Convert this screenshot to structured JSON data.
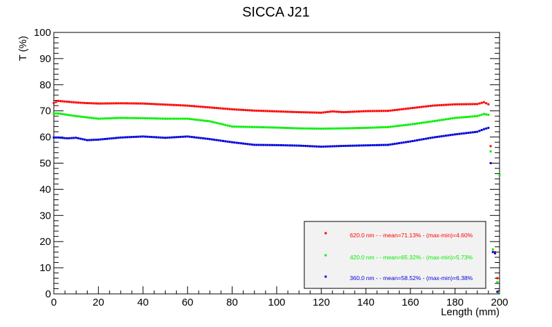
{
  "chart_data": {
    "type": "scatter",
    "title": "SICCA J21",
    "xlabel": "Length (mm)",
    "ylabel": "T (%)",
    "xlim": [
      0,
      200
    ],
    "ylim": [
      0,
      100
    ],
    "x_ticks": [
      0,
      20,
      40,
      60,
      80,
      100,
      120,
      140,
      160,
      180,
      200
    ],
    "y_ticks": [
      0,
      10,
      20,
      30,
      40,
      50,
      60,
      70,
      80,
      90,
      100
    ],
    "grid": false,
    "legend_position": "bottom-right",
    "series": [
      {
        "name": "620.0 nm -  - mean=71.13% - (max-min)=4.60%",
        "color": "#ff0000",
        "profile_x": [
          0,
          2,
          6,
          10,
          14,
          20,
          30,
          40,
          50,
          60,
          70,
          80,
          90,
          100,
          110,
          120,
          125,
          130,
          140,
          150,
          160,
          170,
          180,
          190,
          193,
          195
        ],
        "profile_y": [
          73.0,
          73.8,
          73.5,
          73.2,
          73.0,
          72.8,
          72.9,
          72.8,
          72.4,
          72.0,
          71.3,
          70.6,
          70.1,
          69.8,
          69.5,
          69.3,
          69.8,
          69.5,
          69.9,
          70.0,
          71.0,
          72.0,
          72.5,
          72.6,
          73.3,
          72.5
        ],
        "tail": [
          {
            "x": 196,
            "y": 56.5
          },
          {
            "x": 198,
            "y": 16.0
          },
          {
            "x": 199,
            "y": 6.0
          },
          {
            "x": 199.5,
            "y": 1.0
          }
        ]
      },
      {
        "name": "420.0 nm -  - mean=65.32% - (max-min)=5.73%",
        "color": "#00ee00",
        "profile_x": [
          0,
          2,
          6,
          10,
          15,
          20,
          30,
          40,
          50,
          60,
          70,
          80,
          90,
          100,
          110,
          120,
          130,
          140,
          150,
          160,
          170,
          180,
          190,
          193,
          195
        ],
        "profile_y": [
          69.0,
          69.0,
          68.5,
          68.0,
          67.5,
          67.0,
          67.3,
          67.2,
          67.0,
          67.0,
          66.0,
          64.0,
          63.8,
          63.6,
          63.3,
          63.2,
          63.3,
          63.5,
          63.8,
          64.8,
          66.0,
          67.3,
          68.0,
          68.8,
          68.5
        ],
        "tail": [
          {
            "x": 196,
            "y": 54.5
          },
          {
            "x": 197,
            "y": 17.0
          },
          {
            "x": 199,
            "y": 4.5
          },
          {
            "x": 199.6,
            "y": 0.5
          },
          {
            "x": 200,
            "y": 45.5
          }
        ]
      },
      {
        "name": "360.0 nm -  - mean=58.52% - (max-min)=6.38%",
        "color": "#0000dd",
        "profile_x": [
          0,
          2,
          6,
          10,
          15,
          20,
          30,
          40,
          50,
          60,
          70,
          80,
          90,
          100,
          110,
          120,
          130,
          140,
          150,
          160,
          170,
          180,
          190,
          193,
          195
        ],
        "profile_y": [
          59.8,
          59.8,
          59.5,
          59.7,
          58.8,
          59.0,
          59.8,
          60.2,
          59.7,
          60.2,
          59.2,
          58.0,
          57.0,
          56.9,
          56.7,
          56.3,
          56.6,
          56.8,
          57.0,
          58.3,
          59.8,
          61.0,
          62.0,
          63.0,
          63.5
        ],
        "tail": [
          {
            "x": 196,
            "y": 50.0
          },
          {
            "x": 197,
            "y": 16.0
          },
          {
            "x": 198,
            "y": 15.5
          },
          {
            "x": 199,
            "y": 0.8
          }
        ]
      }
    ]
  }
}
